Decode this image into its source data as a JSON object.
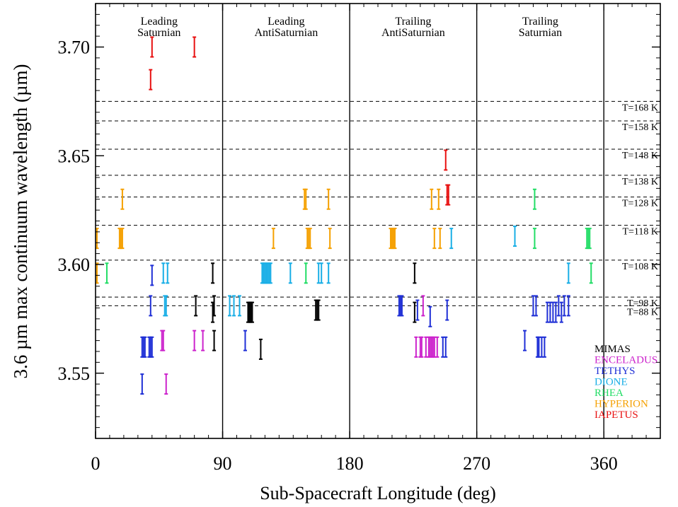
{
  "chart_data": {
    "type": "scatter",
    "xlabel": "Sub-Spacecraft Longitude  (deg)",
    "ylabel": "3.6 µm max continuum wavelength (µm)",
    "xlim": [
      0,
      400
    ],
    "ylim": [
      3.52,
      3.72
    ],
    "xticks": [
      {
        "value": 0,
        "label": "0"
      },
      {
        "value": 90,
        "label": "90"
      },
      {
        "value": 180,
        "label": "180"
      },
      {
        "value": 270,
        "label": "270"
      },
      {
        "value": 360,
        "label": "360"
      }
    ],
    "yticks": [
      {
        "value": 3.55,
        "label": "3.55"
      },
      {
        "value": 3.6,
        "label": "3.60"
      },
      {
        "value": 3.65,
        "label": "3.65"
      },
      {
        "value": 3.7,
        "label": "3.70"
      }
    ],
    "dividers": [
      90,
      180,
      270,
      360
    ],
    "regions": [
      {
        "line1": "Leading",
        "line2": "Saturnian",
        "x": 45
      },
      {
        "line1": "Leading",
        "line2": "AntiSaturnian",
        "x": 135
      },
      {
        "line1": "Trailing",
        "line2": "AntiSaturnian",
        "x": 225
      },
      {
        "line1": "Trailing",
        "line2": "Saturnian",
        "x": 315
      }
    ],
    "temperature_lines": [
      {
        "label": "T=168 K",
        "y": 3.675
      },
      {
        "label": "T=158 K",
        "y": 3.666
      },
      {
        "label": "T=148 K",
        "y": 3.653
      },
      {
        "label": "T=138 K",
        "y": 3.641
      },
      {
        "label": "T=128 K",
        "y": 3.631
      },
      {
        "label": "T=118 K",
        "y": 3.618
      },
      {
        "label": "T=108 K",
        "y": 3.602
      },
      {
        "label": "T=98 K",
        "y": 3.585
      },
      {
        "label": "T=88 K",
        "y": 3.581
      }
    ],
    "series": [
      {
        "name": "MIMAS",
        "color": "#000000",
        "points": [
          [
            83,
            3.596
          ],
          [
            71,
            3.581
          ],
          [
            83,
            3.578
          ],
          [
            84,
            3.565
          ],
          [
            84,
            3.581
          ],
          [
            108,
            3.578
          ],
          [
            109,
            3.578
          ],
          [
            110,
            3.578
          ],
          [
            111,
            3.578
          ],
          [
            117,
            3.561
          ],
          [
            156,
            3.579
          ],
          [
            157,
            3.579
          ],
          [
            158,
            3.579
          ],
          [
            226,
            3.596
          ],
          [
            226,
            3.578
          ]
        ]
      },
      {
        "name": "ENCELADUS",
        "color": "#cc22cc",
        "points": [
          [
            70,
            3.565
          ],
          [
            76,
            3.565
          ],
          [
            47,
            3.565
          ],
          [
            48,
            3.565
          ],
          [
            50,
            3.545
          ],
          [
            227,
            3.562
          ],
          [
            230,
            3.562
          ],
          [
            231,
            3.562
          ],
          [
            232,
            3.581
          ],
          [
            234,
            3.562
          ],
          [
            236,
            3.562
          ],
          [
            237,
            3.562
          ],
          [
            238,
            3.562
          ],
          [
            239,
            3.562
          ],
          [
            240,
            3.562
          ],
          [
            242,
            3.562
          ]
        ]
      },
      {
        "name": "TETHYS",
        "color": "#1f2fd6",
        "points": [
          [
            33,
            3.545
          ],
          [
            33,
            3.562
          ],
          [
            34,
            3.562
          ],
          [
            35,
            3.562
          ],
          [
            38,
            3.562
          ],
          [
            39,
            3.562
          ],
          [
            40,
            3.562
          ],
          [
            39,
            3.581
          ],
          [
            40,
            3.595
          ],
          [
            106,
            3.565
          ],
          [
            215,
            3.581
          ],
          [
            216,
            3.581
          ],
          [
            217,
            3.581
          ],
          [
            228,
            3.579
          ],
          [
            237,
            3.576
          ],
          [
            246,
            3.562
          ],
          [
            248,
            3.562
          ],
          [
            249,
            3.579
          ],
          [
            304,
            3.565
          ],
          [
            310,
            3.581
          ],
          [
            312,
            3.581
          ],
          [
            313,
            3.562
          ],
          [
            314,
            3.562
          ],
          [
            316,
            3.562
          ],
          [
            318,
            3.562
          ],
          [
            320,
            3.578
          ],
          [
            322,
            3.578
          ],
          [
            324,
            3.578
          ],
          [
            326,
            3.578
          ],
          [
            328,
            3.581
          ],
          [
            330,
            3.578
          ],
          [
            332,
            3.581
          ],
          [
            335,
            3.581
          ]
        ]
      },
      {
        "name": "DIONE",
        "color": "#18aee6",
        "points": [
          [
            48,
            3.596
          ],
          [
            49,
            3.581
          ],
          [
            50,
            3.581
          ],
          [
            51,
            3.596
          ],
          [
            95,
            3.581
          ],
          [
            98,
            3.581
          ],
          [
            102,
            3.581
          ],
          [
            118,
            3.596
          ],
          [
            119,
            3.596
          ],
          [
            120,
            3.596
          ],
          [
            121,
            3.596
          ],
          [
            122,
            3.596
          ],
          [
            123,
            3.596
          ],
          [
            124,
            3.596
          ],
          [
            138,
            3.596
          ],
          [
            158,
            3.596
          ],
          [
            160,
            3.596
          ],
          [
            165,
            3.596
          ],
          [
            252,
            3.612
          ],
          [
            297,
            3.613
          ],
          [
            335,
            3.596
          ]
        ]
      },
      {
        "name": "RHEA",
        "color": "#22dd66",
        "points": [
          [
            8,
            3.596
          ],
          [
            149,
            3.596
          ],
          [
            311,
            3.63
          ],
          [
            311,
            3.612
          ],
          [
            348,
            3.612
          ],
          [
            349,
            3.612
          ],
          [
            350,
            3.612
          ],
          [
            351,
            3.596
          ]
        ]
      },
      {
        "name": "HYPERION",
        "color": "#f5a000",
        "points": [
          [
            1,
            3.612
          ],
          [
            1,
            3.596
          ],
          [
            17,
            3.612
          ],
          [
            18,
            3.612
          ],
          [
            19,
            3.612
          ],
          [
            19,
            3.63
          ],
          [
            126,
            3.612
          ],
          [
            148,
            3.63
          ],
          [
            149,
            3.63
          ],
          [
            150,
            3.612
          ],
          [
            151,
            3.612
          ],
          [
            152,
            3.612
          ],
          [
            165,
            3.63
          ],
          [
            166,
            3.612
          ],
          [
            209,
            3.612
          ],
          [
            210,
            3.612
          ],
          [
            211,
            3.612
          ],
          [
            212,
            3.612
          ],
          [
            238,
            3.63
          ],
          [
            240,
            3.612
          ],
          [
            243,
            3.63
          ],
          [
            244,
            3.612
          ]
        ]
      },
      {
        "name": "IAPETUS",
        "color": "#e81010",
        "points": [
          [
            39,
            3.685
          ],
          [
            40,
            3.7
          ],
          [
            70,
            3.7
          ],
          [
            248,
            3.648
          ],
          [
            249,
            3.632
          ],
          [
            250,
            3.632
          ]
        ]
      }
    ]
  }
}
